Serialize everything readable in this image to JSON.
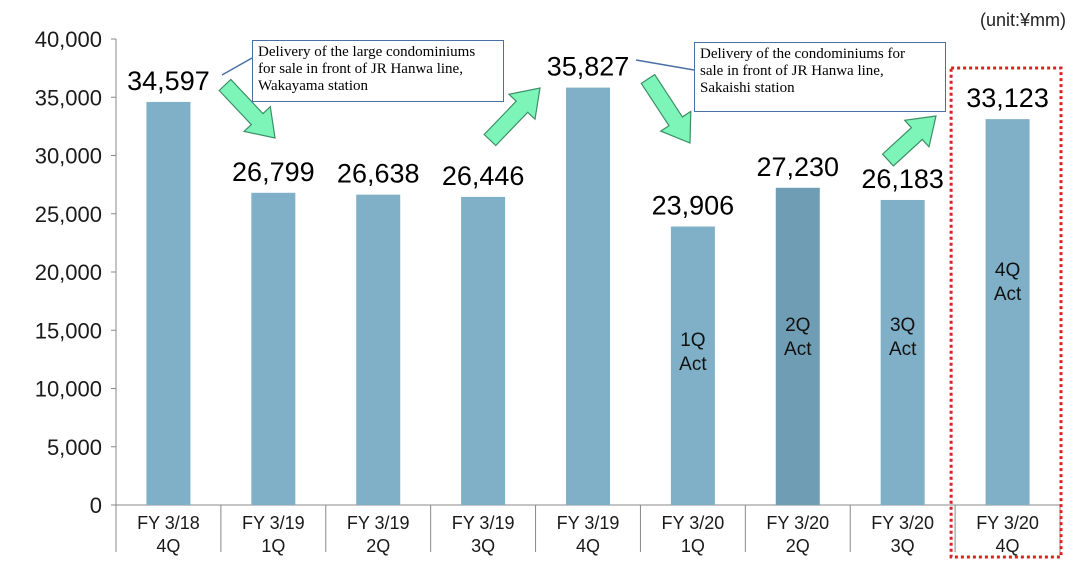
{
  "chart_data": {
    "type": "bar",
    "unit": "(unit:¥mm)",
    "categories": [
      [
        "FY 3/18",
        "4Q"
      ],
      [
        "FY 3/19",
        "1Q"
      ],
      [
        "FY 3/19",
        "2Q"
      ],
      [
        "FY 3/19",
        "3Q"
      ],
      [
        "FY 3/19",
        "4Q"
      ],
      [
        "FY 3/20",
        "1Q"
      ],
      [
        "FY 3/20",
        "2Q"
      ],
      [
        "FY 3/20",
        "3Q"
      ],
      [
        "FY 3/20",
        "4Q"
      ]
    ],
    "values": [
      34597,
      26799,
      26638,
      26446,
      35827,
      23906,
      27230,
      26183,
      33123
    ],
    "value_labels": [
      "34,597",
      "26,799",
      "26,638",
      "26,446",
      "35,827",
      "23,906",
      "27,230",
      "26,183",
      "33,123"
    ],
    "bar_labels": [
      null,
      null,
      null,
      null,
      null,
      [
        "1Q",
        "Act"
      ],
      [
        "2Q",
        "Act"
      ],
      [
        "3Q",
        "Act"
      ],
      [
        "4Q",
        "Act"
      ]
    ],
    "ylim": [
      0,
      40000
    ],
    "yticks": [
      "0",
      "5,000",
      "10,000",
      "15,000",
      "20,000",
      "25,000",
      "30,000",
      "35,000",
      "40,000"
    ],
    "ytick_values": [
      0,
      5000,
      10000,
      15000,
      20000,
      25000,
      30000,
      35000,
      40000
    ],
    "highlighted_category_index": 8,
    "colors": {
      "bar": "#7fb0c8",
      "bar_highlight": "#6f9db4",
      "arrow_fill": "#7ef5b8",
      "arrow_stroke": "#3a8f66",
      "highlight_box": "#e02020",
      "note_border": "#4a6fa5"
    },
    "annotations": [
      {
        "text": [
          "Delivery of the large condominiums",
          "for sale in front of JR Hanwa line,",
          "Wakayama station"
        ]
      },
      {
        "text": [
          "Delivery of the condominiums for",
          "sale in front of JR Hanwa line,",
          "Sakaishi station"
        ]
      }
    ],
    "grid": false
  }
}
